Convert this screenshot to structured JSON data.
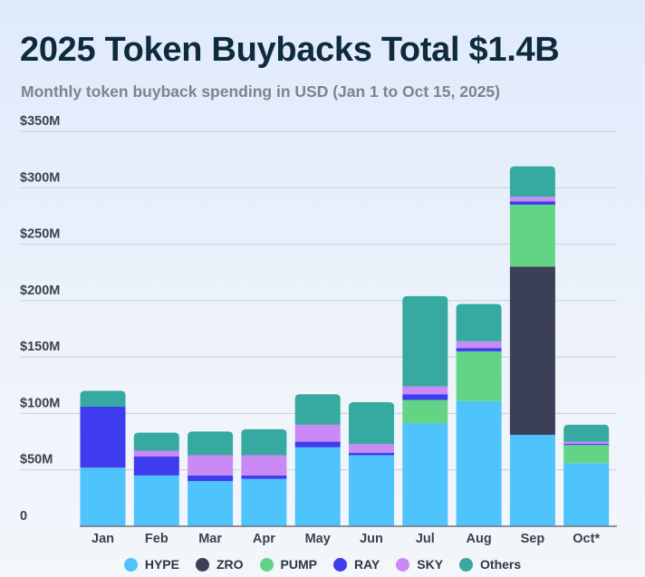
{
  "chart_data": {
    "type": "bar",
    "stacked": true,
    "title": "2025 Token Buybacks Total $1.4B",
    "subtitle": "Monthly token buyback spending in USD (Jan 1 to Oct 15, 2025)",
    "categories": [
      "Jan",
      "Feb",
      "Mar",
      "Apr",
      "May",
      "Jun",
      "Jul",
      "Aug",
      "Sep",
      "Oct*"
    ],
    "ylim": [
      0,
      350
    ],
    "y_ticks": [
      {
        "value": 0,
        "label": "0"
      },
      {
        "value": 50,
        "label": "$50M"
      },
      {
        "value": 100,
        "label": "$100M"
      },
      {
        "value": 150,
        "label": "$150M"
      },
      {
        "value": 200,
        "label": "$200M"
      },
      {
        "value": 250,
        "label": "$250M"
      },
      {
        "value": 300,
        "label": "$300M"
      },
      {
        "value": 350,
        "label": "$350M"
      }
    ],
    "grid": true,
    "legend_position": "bottom",
    "series": [
      {
        "name": "HYPE",
        "color": "#4fc3fb",
        "values": [
          52,
          45,
          40,
          42,
          70,
          63,
          91,
          111,
          81,
          56
        ]
      },
      {
        "name": "ZRO",
        "color": "#3b3f57",
        "values": [
          0,
          0,
          0,
          0,
          0,
          0,
          0,
          0,
          149,
          0
        ]
      },
      {
        "name": "PUMP",
        "color": "#63d486",
        "values": [
          0,
          0,
          0,
          0,
          0,
          0,
          21,
          44,
          55,
          16
        ]
      },
      {
        "name": "RAY",
        "color": "#3f3cf0",
        "values": [
          54,
          17,
          5,
          3,
          5,
          2,
          5,
          3,
          3,
          1
        ]
      },
      {
        "name": "SKY",
        "color": "#c98af5",
        "values": [
          0,
          5,
          18,
          18,
          15,
          8,
          7,
          6,
          4,
          2
        ]
      },
      {
        "name": "Others",
        "color": "#36aaa0",
        "values": [
          14,
          16,
          21,
          23,
          27,
          37,
          80,
          33,
          27,
          15
        ]
      }
    ]
  }
}
